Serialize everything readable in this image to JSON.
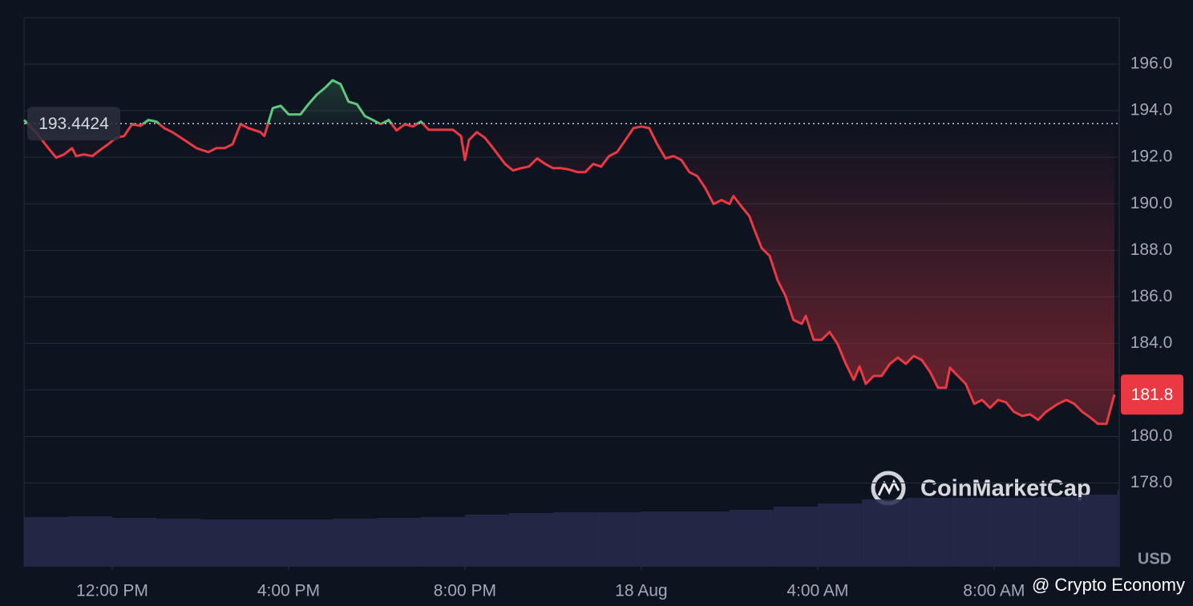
{
  "chart_data": {
    "type": "line",
    "currency": "USD",
    "watermark": "CoinMarketCap",
    "credit": "@ Crypto Economy",
    "reference": 193.4424,
    "up_color": "#5fc77e",
    "down_color": "#ea3943",
    "grid": true,
    "xlim": [
      10,
      34.84
    ],
    "xticks": [
      {
        "value": 12,
        "label": "12:00 PM"
      },
      {
        "value": 16,
        "label": "4:00 PM"
      },
      {
        "value": 20,
        "label": "8:00 PM"
      },
      {
        "value": 24,
        "label": "18 Aug"
      },
      {
        "value": 28,
        "label": "4:00 AM"
      },
      {
        "value": 32,
        "label": "8:00 AM"
      }
    ],
    "ylim": [
      174.4,
      198
    ],
    "yticks": [
      {
        "value": 178,
        "label": "178.0"
      },
      {
        "value": 180,
        "label": "180.0"
      },
      {
        "value": 182,
        "label": "182.0"
      },
      {
        "value": 184,
        "label": "184.0"
      },
      {
        "value": 186,
        "label": "186.0"
      },
      {
        "value": 188,
        "label": "188.0"
      },
      {
        "value": 190,
        "label": "190.0"
      },
      {
        "value": 192,
        "label": "192.0"
      },
      {
        "value": 194,
        "label": "194.0"
      },
      {
        "value": 196,
        "label": "196.0"
      }
    ],
    "x": [
      10.0,
      10.27,
      10.55,
      10.73,
      10.91,
      11.09,
      11.18,
      11.36,
      11.55,
      11.73,
      11.91,
      12.09,
      12.27,
      12.45,
      12.64,
      12.82,
      13.0,
      13.18,
      13.36,
      13.64,
      13.91,
      14.18,
      14.36,
      14.55,
      14.73,
      14.91,
      15.09,
      15.36,
      15.45,
      15.64,
      15.82,
      16.0,
      16.27,
      16.45,
      16.64,
      16.82,
      17.0,
      17.18,
      17.36,
      17.55,
      17.73,
      17.91,
      18.09,
      18.27,
      18.45,
      18.64,
      18.82,
      19.0,
      19.18,
      19.45,
      19.73,
      19.91,
      20.0,
      20.09,
      20.27,
      20.45,
      20.64,
      20.91,
      21.09,
      21.27,
      21.45,
      21.64,
      21.82,
      22.0,
      22.18,
      22.36,
      22.55,
      22.73,
      22.91,
      23.09,
      23.27,
      23.45,
      23.64,
      23.82,
      24.0,
      24.18,
      24.36,
      24.55,
      24.73,
      24.91,
      25.09,
      25.27,
      25.45,
      25.64,
      25.82,
      26.0,
      26.09,
      26.27,
      26.45,
      26.55,
      26.73,
      26.91,
      27.09,
      27.27,
      27.45,
      27.64,
      27.73,
      27.91,
      28.09,
      28.27,
      28.45,
      28.64,
      28.82,
      28.95,
      29.09,
      29.27,
      29.45,
      29.64,
      29.82,
      30.0,
      30.18,
      30.36,
      30.55,
      30.73,
      30.91,
      31.0,
      31.18,
      31.36,
      31.55,
      31.73,
      31.91,
      32.09,
      32.27,
      32.45,
      32.64,
      32.82,
      33.0,
      33.18,
      33.45,
      33.64,
      33.82,
      34.0,
      34.18,
      34.36,
      34.55,
      34.73
    ],
    "values": [
      193.6,
      193.08,
      192.39,
      191.98,
      192.12,
      192.39,
      192.05,
      192.12,
      192.05,
      192.32,
      192.56,
      192.84,
      192.91,
      193.42,
      193.35,
      193.6,
      193.53,
      193.25,
      193.08,
      192.74,
      192.39,
      192.22,
      192.39,
      192.39,
      192.56,
      193.42,
      193.25,
      193.08,
      192.91,
      194.11,
      194.21,
      193.84,
      193.84,
      194.28,
      194.69,
      194.97,
      195.31,
      195.14,
      194.39,
      194.28,
      193.77,
      193.6,
      193.42,
      193.6,
      193.15,
      193.42,
      193.32,
      193.53,
      193.18,
      193.18,
      193.18,
      192.91,
      191.88,
      192.74,
      193.08,
      192.84,
      192.39,
      191.71,
      191.43,
      191.53,
      191.6,
      191.95,
      191.71,
      191.53,
      191.53,
      191.47,
      191.36,
      191.36,
      191.71,
      191.6,
      192.05,
      192.22,
      192.74,
      193.25,
      193.32,
      193.25,
      192.56,
      191.95,
      192.05,
      191.88,
      191.36,
      191.19,
      190.68,
      189.99,
      190.16,
      189.99,
      190.33,
      189.89,
      189.47,
      188.96,
      188.1,
      187.76,
      186.72,
      186.04,
      185.01,
      184.84,
      185.18,
      184.15,
      184.15,
      184.49,
      183.98,
      183.12,
      182.43,
      183.01,
      182.26,
      182.6,
      182.6,
      183.12,
      183.39,
      183.12,
      183.46,
      183.29,
      182.77,
      182.09,
      182.09,
      182.95,
      182.6,
      182.26,
      181.4,
      181.57,
      181.23,
      181.57,
      181.47,
      181.06,
      180.88,
      180.95,
      180.71,
      181.06,
      181.4,
      181.57,
      181.4,
      181.06,
      180.82,
      180.54,
      180.54,
      181.8
    ],
    "volume": {
      "x": [
        10,
        11,
        12,
        13,
        14,
        15,
        16,
        17,
        18,
        19,
        20,
        21,
        22,
        23,
        24,
        25,
        26,
        27,
        28,
        29,
        30,
        31,
        32,
        33,
        34,
        34.8
      ],
      "values": [
        62,
        63,
        61,
        60,
        59,
        59,
        59,
        60,
        61,
        62,
        65,
        67,
        68,
        68,
        69,
        69,
        71,
        75,
        79,
        84,
        86,
        86,
        86,
        87,
        90,
        96
      ]
    }
  }
}
